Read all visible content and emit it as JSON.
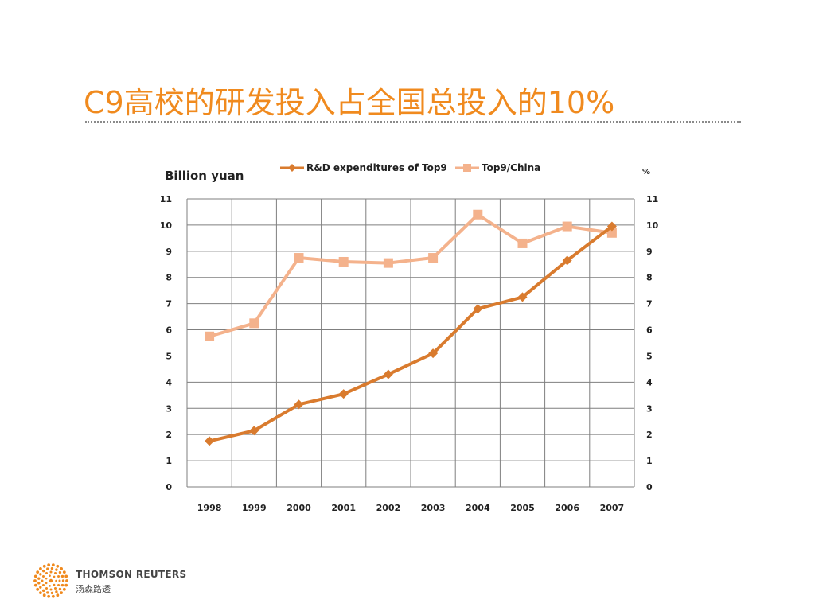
{
  "slide": {
    "title": "C9高校的研发投入占全国总投入的10%"
  },
  "brand": {
    "name": "THOMSON REUTERS",
    "name_cn": "汤森路透",
    "logo_icon": "thomson-reuters-dot-logo",
    "color": "#f08a1e"
  },
  "chart_data": {
    "type": "line",
    "title": "",
    "ylabel_left": "Billion yuan",
    "ylabel_right": "%",
    "categories": [
      "1998",
      "1999",
      "2000",
      "2001",
      "2002",
      "2003",
      "2004",
      "2005",
      "2006",
      "2007"
    ],
    "ylim_left": [
      0,
      11
    ],
    "ylim_right": [
      0,
      11
    ],
    "yticks": [
      0,
      1,
      2,
      3,
      4,
      5,
      6,
      7,
      8,
      9,
      10,
      11
    ],
    "grid": true,
    "legend_position": "top",
    "series": [
      {
        "name": "R&D expenditures of Top9",
        "axis": "left",
        "marker": "diamond",
        "color": "#d97b2e",
        "values": [
          1.75,
          2.15,
          3.15,
          3.55,
          4.3,
          5.1,
          6.8,
          7.25,
          8.65,
          9.95
        ]
      },
      {
        "name": "Top9/China",
        "axis": "right",
        "marker": "square",
        "color": "#f4b28c",
        "values": [
          5.75,
          6.25,
          8.75,
          8.6,
          8.55,
          8.75,
          10.4,
          9.3,
          9.95,
          9.7
        ]
      }
    ]
  }
}
